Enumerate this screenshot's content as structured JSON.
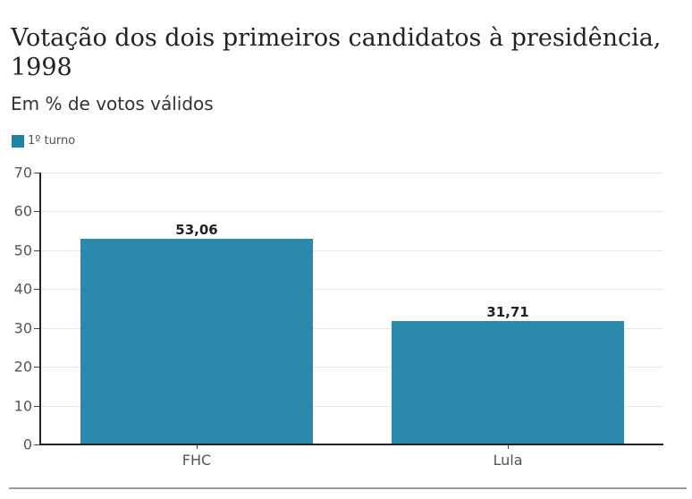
{
  "header": {
    "title": "Votação dos dois primeiros candidatos à presidência, 1998",
    "subtitle": "Em % de votos válidos"
  },
  "legend": {
    "items": [
      {
        "label": "1º turno",
        "color": "#1f83a5"
      }
    ]
  },
  "axes": {
    "y_ticks": [
      "0",
      "10",
      "20",
      "30",
      "40",
      "50",
      "60",
      "70"
    ],
    "x_ticks": [
      "FHC",
      "Lula"
    ]
  },
  "bars": [
    {
      "category": "FHC",
      "value": 53.06,
      "label": "53,06"
    },
    {
      "category": "Lula",
      "value": 31.71,
      "label": "31,71"
    }
  ],
  "colors": {
    "bar": "#2b8aab",
    "legend_swatch": "#1f83a5",
    "gridline": "#e8e8e8",
    "axis": "#222222"
  },
  "chart_data": {
    "type": "bar",
    "title": "Votação dos dois primeiros candidatos à presidência, 1998",
    "subtitle": "Em % de votos válidos",
    "categories": [
      "FHC",
      "Lula"
    ],
    "series": [
      {
        "name": "1º turno",
        "values": [
          53.06,
          31.71
        ]
      }
    ],
    "data_labels": [
      "53,06",
      "31,71"
    ],
    "xlabel": "",
    "ylabel": "",
    "ylim": [
      0,
      70
    ],
    "y_ticks": [
      0,
      10,
      20,
      30,
      40,
      50,
      60,
      70
    ],
    "grid": true,
    "legend_position": "top-left"
  }
}
